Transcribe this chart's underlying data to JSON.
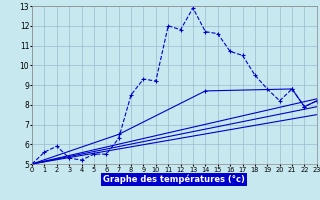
{
  "xlabel": "Graphe des températures (°c)",
  "background_color": "#c8e8f0",
  "grid_color": "#99bbcc",
  "line_color": "#0000cc",
  "xmin": 0,
  "xmax": 23,
  "ymin": 5,
  "ymax": 13,
  "x_ticks": [
    0,
    1,
    2,
    3,
    4,
    5,
    6,
    7,
    8,
    9,
    10,
    11,
    12,
    13,
    14,
    15,
    16,
    17,
    18,
    19,
    20,
    21,
    22,
    23
  ],
  "y_ticks": [
    5,
    6,
    7,
    8,
    9,
    10,
    11,
    12,
    13
  ],
  "main_x": [
    0,
    1,
    2,
    3,
    4,
    5,
    6,
    7,
    8,
    9,
    10,
    11,
    12,
    13,
    14,
    15,
    16,
    17,
    18,
    19,
    20,
    21,
    22,
    23
  ],
  "main_y": [
    5.0,
    5.6,
    5.9,
    5.3,
    5.2,
    5.5,
    5.5,
    6.3,
    8.5,
    9.3,
    9.2,
    12.0,
    11.8,
    12.9,
    11.7,
    11.6,
    10.7,
    10.5,
    9.5,
    8.8,
    8.2,
    8.8,
    7.9,
    8.2
  ],
  "line2_x": [
    0,
    23
  ],
  "line2_y": [
    5.0,
    8.3
  ],
  "line3_x": [
    0,
    23
  ],
  "line3_y": [
    5.0,
    7.9
  ],
  "line4_x": [
    0,
    23
  ],
  "line4_y": [
    5.0,
    7.5
  ],
  "seg2_x": [
    0,
    7,
    14,
    21,
    22,
    23
  ],
  "seg2_y": [
    5.0,
    6.5,
    8.7,
    8.8,
    7.9,
    8.2
  ],
  "xlabel_bg": "#0000cc",
  "xlabel_fg": "#ffffff"
}
